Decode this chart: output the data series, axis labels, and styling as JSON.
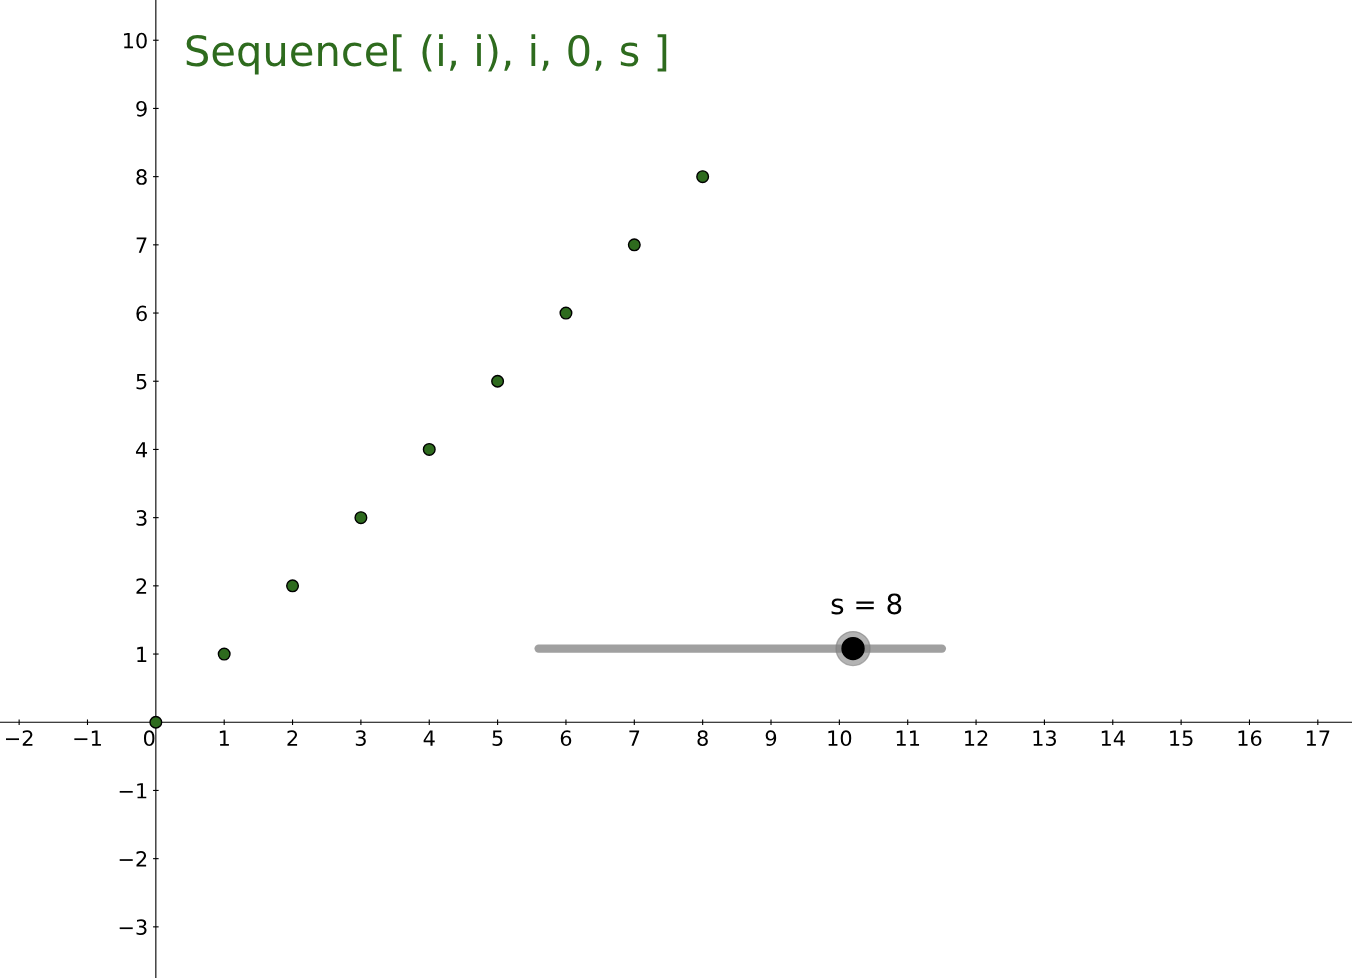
{
  "chart_data": {
    "type": "scatter",
    "title": "Sequence[ (i, i), i, 0, s ]",
    "x": [
      0,
      1,
      2,
      3,
      4,
      5,
      6,
      7,
      8
    ],
    "series": [
      {
        "color": "#2e6b1e",
        "values": [
          0,
          1,
          2,
          3,
          4,
          5,
          6,
          7,
          8
        ]
      }
    ],
    "xlim": [
      -2.28,
      17.5
    ],
    "ylim": [
      -3.75,
      10.59
    ],
    "xticks": [
      {
        "value": -2,
        "label": "−2"
      },
      {
        "value": -1,
        "label": "−1"
      },
      0,
      1,
      2,
      3,
      4,
      5,
      6,
      7,
      8,
      9,
      10,
      11,
      12,
      13,
      14,
      15,
      16,
      17
    ],
    "yticks": [
      {
        "value": -3,
        "label": "−3"
      },
      {
        "value": -2,
        "label": "−2"
      },
      {
        "value": -1,
        "label": "−1"
      },
      1,
      2,
      3,
      4,
      5,
      6,
      7,
      8,
      9,
      10
    ],
    "marker": "circle",
    "grid": false,
    "legend": false,
    "annotations": [
      "s = 8"
    ]
  }
}
